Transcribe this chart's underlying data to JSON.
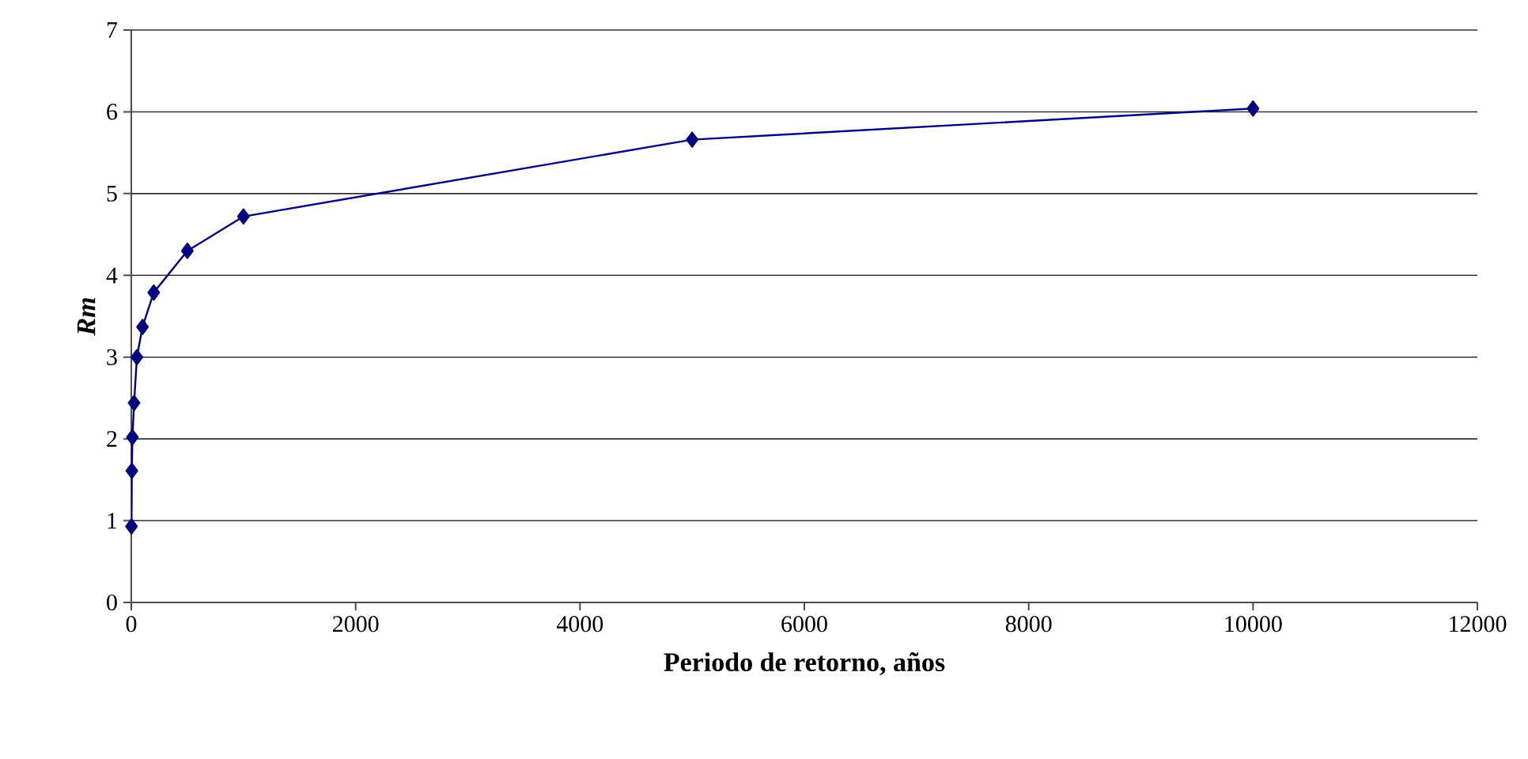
{
  "chart_data": {
    "type": "line",
    "xlabel": "Periodo de retorno, años",
    "ylabel": "Rm",
    "x": [
      2,
      5,
      10,
      25,
      50,
      100,
      200,
      500,
      1000,
      5000,
      10000
    ],
    "series": [
      {
        "color": "#000080",
        "values": [
          0.93,
          1.61,
          2.02,
          2.44,
          3.0,
          3.37,
          3.79,
          4.3,
          4.72,
          5.66,
          6.04
        ]
      }
    ],
    "xlim": [
      0,
      12000
    ],
    "xticks": [
      0,
      2000,
      4000,
      6000,
      8000,
      10000,
      12000
    ],
    "ylim": [
      0,
      7
    ],
    "yticks": [
      0,
      1,
      2,
      3,
      4,
      5,
      6,
      7
    ],
    "grid": "y",
    "marker": "diamond",
    "line_style": "solid"
  }
}
